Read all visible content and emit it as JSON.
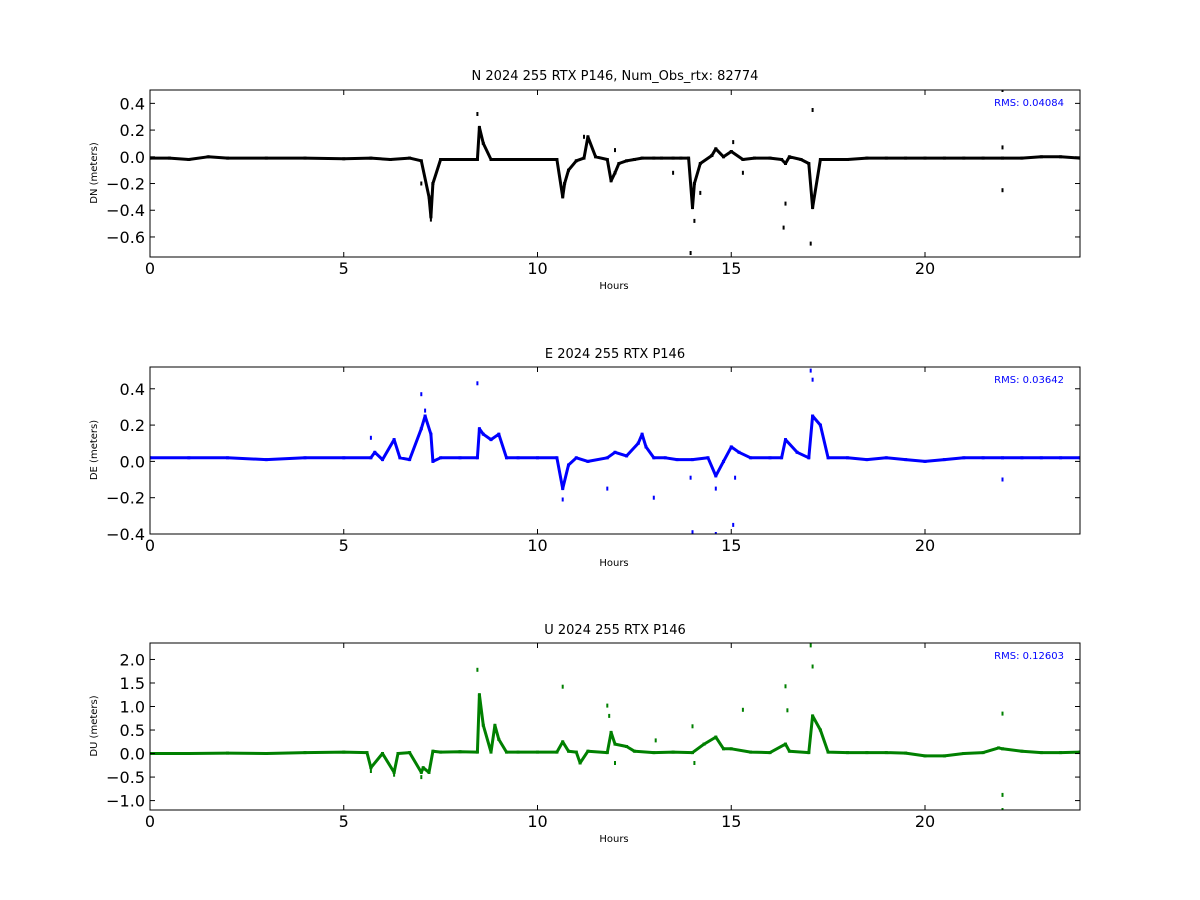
{
  "chart_data": [
    {
      "type": "scatter",
      "component": "N",
      "title": "N 2024 255 RTX  P146, Num_Obs_rtx: 82774",
      "xlabel": "Hours",
      "ylabel": "DN (meters)",
      "rms_label": "RMS:  0.04084",
      "color": "#000000",
      "xlim": [
        0,
        24
      ],
      "ylim": [
        -0.75,
        0.5
      ],
      "xticks": [
        0,
        5,
        10,
        15,
        20
      ],
      "yticks": [
        -0.6,
        -0.4,
        -0.2,
        0.0,
        0.2,
        0.4
      ],
      "ytick_labels": [
        "−0.6",
        "−0.4",
        "−0.2",
        "0.0",
        "0.2",
        "0.4"
      ],
      "series": [
        {
          "x": [
            0,
            0.5,
            1.0,
            1.5,
            2.0,
            3.0,
            4.0,
            5.0,
            5.7,
            6.2,
            6.7,
            7.0,
            7.2,
            7.25,
            7.3,
            7.5,
            8.0,
            8.45,
            8.5,
            8.6,
            8.8,
            9.0,
            9.5,
            10.0,
            10.5,
            10.65,
            10.7,
            10.8,
            11.0,
            11.2,
            11.3,
            11.5,
            11.8,
            11.9,
            12.0,
            12.1,
            12.3,
            12.5,
            12.7,
            13.0,
            13.2,
            13.5,
            13.7,
            13.9,
            14.0,
            14.05,
            14.2,
            14.5,
            14.6,
            14.8,
            15.0,
            15.3,
            15.6,
            16.0,
            16.3,
            16.4,
            16.5,
            16.8,
            17.0,
            17.1,
            17.3,
            17.6,
            18.0,
            18.5,
            19.0,
            19.5,
            20.0,
            20.5,
            21.0,
            21.5,
            22.0,
            22.5,
            23.0,
            23.5,
            24.0
          ],
          "y": [
            -0.01,
            -0.01,
            -0.02,
            0.0,
            -0.01,
            -0.01,
            -0.01,
            -0.015,
            -0.01,
            -0.02,
            -0.01,
            -0.03,
            -0.3,
            -0.45,
            -0.2,
            -0.02,
            -0.02,
            -0.02,
            0.22,
            0.1,
            -0.02,
            -0.02,
            -0.02,
            -0.02,
            -0.02,
            -0.3,
            -0.2,
            -0.1,
            -0.03,
            -0.01,
            0.15,
            0.0,
            -0.02,
            -0.18,
            -0.12,
            -0.05,
            -0.03,
            -0.02,
            -0.01,
            -0.01,
            -0.01,
            -0.01,
            -0.01,
            -0.01,
            -0.38,
            -0.2,
            -0.05,
            0.01,
            0.06,
            0.0,
            0.04,
            -0.02,
            -0.01,
            -0.01,
            -0.02,
            -0.05,
            0.0,
            -0.02,
            -0.05,
            -0.38,
            -0.02,
            -0.02,
            -0.02,
            -0.01,
            -0.01,
            -0.01,
            -0.01,
            -0.01,
            -0.01,
            -0.01,
            -0.01,
            -0.01,
            0.0,
            0.0,
            -0.01
          ]
        }
      ],
      "outliers": {
        "x": [
          7.0,
          7.25,
          8.45,
          11.2,
          12.0,
          13.5,
          13.95,
          14.05,
          14.2,
          15.05,
          15.3,
          16.35,
          16.4,
          17.05,
          17.1,
          22.0,
          22.0,
          22.0
        ],
        "y": [
          -0.2,
          -0.47,
          0.32,
          0.15,
          0.05,
          -0.12,
          -0.72,
          -0.48,
          -0.27,
          0.11,
          -0.12,
          -0.53,
          -0.35,
          -0.65,
          0.35,
          -0.25,
          0.07,
          0.5
        ]
      }
    },
    {
      "type": "scatter",
      "component": "E",
      "title": "E 2024 255 RTX  P146",
      "xlabel": "Hours",
      "ylabel": "DE (meters)",
      "rms_label": "RMS:  0.03642",
      "color": "#0000ff",
      "xlim": [
        0,
        24
      ],
      "ylim": [
        -0.4,
        0.52
      ],
      "xticks": [
        0,
        5,
        10,
        15,
        20
      ],
      "yticks": [
        -0.4,
        -0.2,
        0.0,
        0.2,
        0.4
      ],
      "ytick_labels": [
        "−0.4",
        "−0.2",
        "0.0",
        "0.2",
        "0.4"
      ],
      "series": [
        {
          "x": [
            0,
            1.0,
            2.0,
            3.0,
            4.0,
            5.0,
            5.7,
            5.8,
            6.0,
            6.3,
            6.45,
            6.7,
            7.0,
            7.1,
            7.25,
            7.3,
            7.5,
            8.0,
            8.45,
            8.5,
            8.6,
            8.8,
            9.0,
            9.2,
            9.5,
            10.0,
            10.5,
            10.65,
            10.8,
            11.0,
            11.3,
            11.8,
            12.0,
            12.3,
            12.6,
            12.7,
            12.8,
            13.0,
            13.3,
            13.6,
            14.0,
            14.4,
            14.6,
            14.8,
            15.0,
            15.2,
            15.5,
            16.0,
            16.3,
            16.4,
            16.7,
            17.0,
            17.1,
            17.3,
            17.5,
            18.0,
            18.5,
            19.0,
            19.5,
            20.0,
            20.5,
            21.0,
            21.5,
            22.0,
            22.5,
            23.0,
            23.5,
            24.0
          ],
          "y": [
            0.02,
            0.02,
            0.02,
            0.01,
            0.02,
            0.02,
            0.02,
            0.05,
            0.01,
            0.12,
            0.02,
            0.01,
            0.18,
            0.25,
            0.15,
            0.0,
            0.02,
            0.02,
            0.02,
            0.18,
            0.15,
            0.12,
            0.15,
            0.02,
            0.02,
            0.02,
            0.02,
            -0.15,
            -0.02,
            0.02,
            0.0,
            0.02,
            0.05,
            0.03,
            0.1,
            0.15,
            0.08,
            0.02,
            0.02,
            0.01,
            0.01,
            0.02,
            -0.08,
            0.0,
            0.08,
            0.05,
            0.02,
            0.02,
            0.02,
            0.12,
            0.05,
            0.02,
            0.25,
            0.2,
            0.02,
            0.02,
            0.01,
            0.02,
            0.01,
            0.0,
            0.01,
            0.02,
            0.02,
            0.02,
            0.02,
            0.02,
            0.02,
            0.02
          ]
        }
      ],
      "outliers": {
        "x": [
          5.7,
          7.0,
          7.1,
          8.45,
          10.65,
          11.8,
          13.0,
          13.95,
          14.0,
          14.6,
          14.6,
          15.05,
          15.1,
          17.05,
          17.1,
          22.0
        ],
        "y": [
          0.13,
          0.37,
          0.28,
          0.43,
          -0.21,
          -0.15,
          -0.2,
          -0.09,
          -0.39,
          -0.15,
          -0.4,
          -0.35,
          -0.09,
          0.5,
          0.45,
          -0.1
        ]
      }
    },
    {
      "type": "scatter",
      "component": "U",
      "title": "U 2024 255 RTX  P146",
      "xlabel": "Hours",
      "ylabel": "DU (meters)",
      "rms_label": "RMS:  0.12603",
      "color": "#008000",
      "xlim": [
        0,
        24
      ],
      "ylim": [
        -1.2,
        2.35
      ],
      "xticks": [
        0,
        5,
        10,
        15,
        20
      ],
      "yticks": [
        -1.0,
        -0.5,
        0.0,
        0.5,
        1.0,
        1.5,
        2.0
      ],
      "ytick_labels": [
        "−1.0",
        "−0.5",
        "0.0",
        "0.5",
        "1.0",
        "1.5",
        "2.0"
      ],
      "series": [
        {
          "x": [
            0,
            1.0,
            2.0,
            3.0,
            4.0,
            5.0,
            5.6,
            5.7,
            6.0,
            6.3,
            6.4,
            6.7,
            7.0,
            7.05,
            7.2,
            7.3,
            7.5,
            8.0,
            8.45,
            8.5,
            8.6,
            8.8,
            8.9,
            9.0,
            9.2,
            9.5,
            10.0,
            10.5,
            10.65,
            10.8,
            11.0,
            11.1,
            11.3,
            11.8,
            11.9,
            12.0,
            12.3,
            12.5,
            13.0,
            13.5,
            14.0,
            14.3,
            14.6,
            14.8,
            15.0,
            15.5,
            16.0,
            16.4,
            16.5,
            17.0,
            17.1,
            17.3,
            17.5,
            18.0,
            18.5,
            19.0,
            19.5,
            20.0,
            20.5,
            21.0,
            21.5,
            21.9,
            22.0,
            22.5,
            23.0,
            23.5,
            24.0
          ],
          "y": [
            0.0,
            0.0,
            0.01,
            0.0,
            0.02,
            0.03,
            0.02,
            -0.3,
            0.0,
            -0.4,
            0.0,
            0.02,
            -0.4,
            -0.3,
            -0.4,
            0.05,
            0.03,
            0.04,
            0.03,
            1.25,
            0.6,
            0.03,
            0.6,
            0.3,
            0.03,
            0.03,
            0.03,
            0.03,
            0.25,
            0.05,
            0.03,
            -0.2,
            0.05,
            0.02,
            0.45,
            0.2,
            0.15,
            0.05,
            0.02,
            0.03,
            0.02,
            0.2,
            0.35,
            0.1,
            0.1,
            0.03,
            0.02,
            0.2,
            0.05,
            0.02,
            0.8,
            0.5,
            0.03,
            0.02,
            0.02,
            0.02,
            0.01,
            -0.05,
            -0.05,
            0.0,
            0.02,
            0.12,
            0.1,
            0.05,
            0.02,
            0.02,
            0.03
          ]
        }
      ],
      "outliers": {
        "x": [
          5.7,
          6.3,
          7.0,
          8.45,
          10.65,
          11.8,
          11.85,
          12.0,
          13.05,
          14.0,
          14.05,
          15.3,
          16.4,
          16.45,
          17.05,
          17.1,
          22.0,
          22.0,
          22.0
        ],
        "y": [
          -0.37,
          -0.45,
          -0.5,
          1.78,
          1.42,
          1.02,
          0.8,
          -0.2,
          0.28,
          0.58,
          -0.2,
          0.93,
          1.43,
          0.92,
          2.3,
          1.85,
          -0.88,
          -1.2,
          0.85
        ]
      }
    }
  ]
}
